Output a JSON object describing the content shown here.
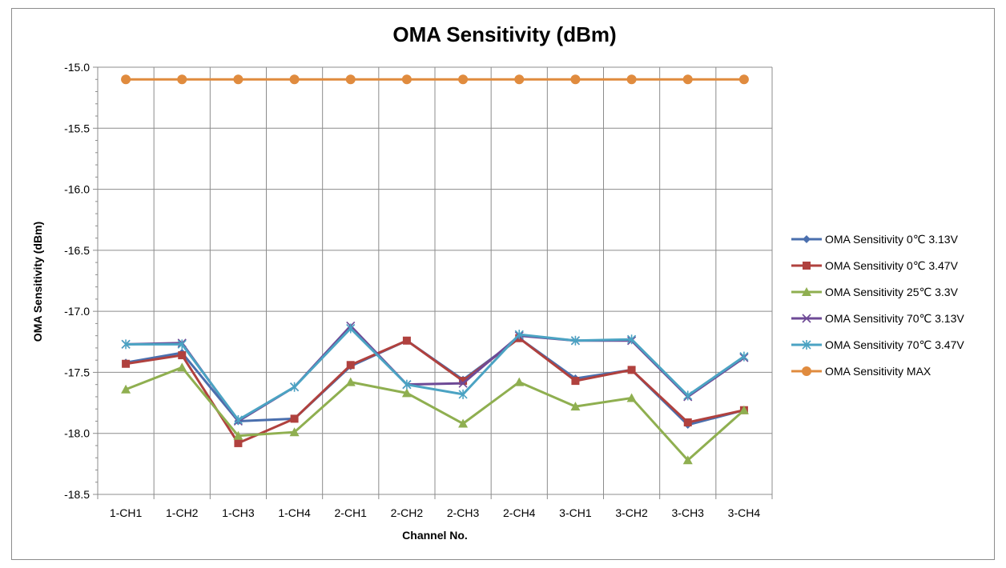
{
  "chart_data": {
    "type": "line",
    "title": "OMA Sensitivity (dBm)",
    "xlabel": "Channel No.",
    "ylabel": "OMA Sensitivity (dBm)",
    "categories": [
      "1-CH1",
      "1-CH2",
      "1-CH3",
      "1-CH4",
      "2-CH1",
      "2-CH2",
      "2-CH3",
      "2-CH4",
      "3-CH1",
      "3-CH2",
      "3-CH3",
      "3-CH4"
    ],
    "ylim": [
      -18.5,
      -15.0
    ],
    "yticks": [
      -15.0,
      -15.5,
      -16.0,
      -16.5,
      -17.0,
      -17.5,
      -18.0,
      -18.5
    ],
    "ytick_labels": [
      "-15.0",
      "-15.5",
      "-16.0",
      "-16.5",
      "-17.0",
      "-17.5",
      "-18.0",
      "-18.5"
    ],
    "grid": true,
    "legend_position": "right",
    "series": [
      {
        "name": "OMA Sensitivity 0℃ 3.13V",
        "color": "#4a6fae",
        "marker": "diamond",
        "values": [
          -17.42,
          -17.34,
          -17.9,
          -17.88,
          -17.45,
          -17.24,
          -17.56,
          -17.22,
          -17.55,
          -17.48,
          -17.93,
          -17.81
        ]
      },
      {
        "name": "OMA Sensitivity 0℃ 3.47V",
        "color": "#b0413e",
        "marker": "square",
        "values": [
          -17.43,
          -17.36,
          -18.08,
          -17.88,
          -17.44,
          -17.24,
          -17.57,
          -17.22,
          -17.57,
          -17.48,
          -17.91,
          -17.81
        ]
      },
      {
        "name": "OMA Sensitivity 25℃ 3.3V",
        "color": "#8faf50",
        "marker": "triangle",
        "values": [
          -17.64,
          -17.46,
          -18.02,
          -17.99,
          -17.58,
          -17.67,
          -17.92,
          -17.58,
          -17.78,
          -17.71,
          -18.22,
          -17.81
        ]
      },
      {
        "name": "OMA Sensitivity 70℃ 3.13V",
        "color": "#6e4a96",
        "marker": "x",
        "values": [
          -17.27,
          -17.26,
          -17.9,
          -17.62,
          -17.12,
          -17.6,
          -17.59,
          -17.2,
          -17.24,
          -17.24,
          -17.7,
          -17.38
        ]
      },
      {
        "name": "OMA Sensitivity 70℃ 3.47V",
        "color": "#4ba3c3",
        "marker": "star",
        "values": [
          -17.27,
          -17.27,
          -17.89,
          -17.62,
          -17.14,
          -17.6,
          -17.68,
          -17.19,
          -17.24,
          -17.23,
          -17.69,
          -17.37
        ]
      },
      {
        "name": "OMA Sensitivity MAX",
        "color": "#e08b3e",
        "marker": "circle",
        "values": [
          -15.1,
          -15.1,
          -15.1,
          -15.1,
          -15.1,
          -15.1,
          -15.1,
          -15.1,
          -15.1,
          -15.1,
          -15.1,
          -15.1
        ]
      }
    ]
  }
}
